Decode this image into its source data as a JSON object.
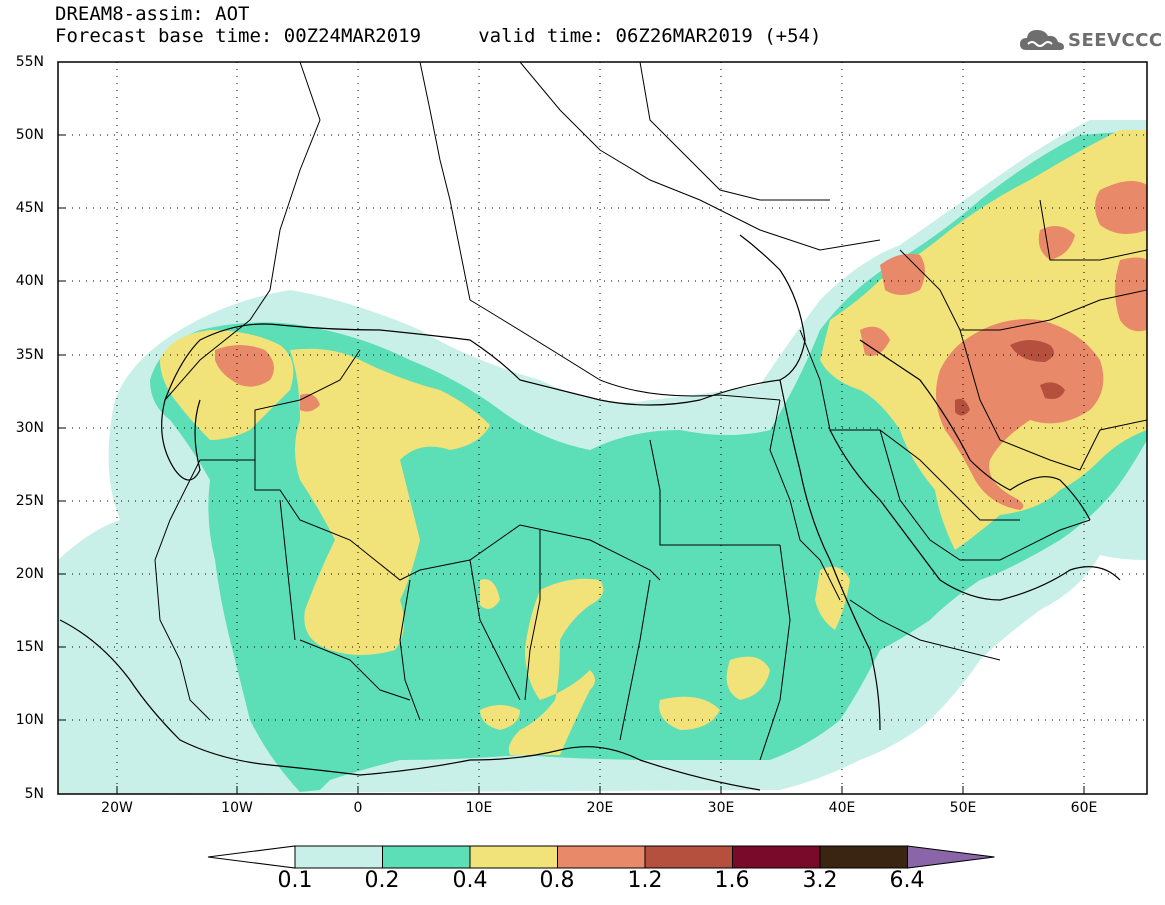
{
  "header": {
    "line1": "DREAM8-assim: AOT",
    "line2": "Forecast base time: 00Z24MAR2019     valid time: 06Z26MAR2019 (+54)"
  },
  "logo": {
    "text": "SEEVCCC",
    "icon": "cloud-icon",
    "color": "#6e6e6e"
  },
  "map": {
    "lat_labels": [
      "55N",
      "50N",
      "45N",
      "40N",
      "35N",
      "30N",
      "25N",
      "20N",
      "15N",
      "10N",
      "5N"
    ],
    "lon_labels": [
      "20W",
      "10W",
      "0",
      "10E",
      "20E",
      "30E",
      "40E",
      "50E",
      "60E"
    ],
    "lon_range": [
      -25,
      65
    ],
    "lat_range": [
      5,
      55
    ]
  },
  "colorbar": {
    "labels": [
      "0.1",
      "0.2",
      "0.4",
      "0.8",
      "1.2",
      "1.6",
      "3.2",
      "6.4"
    ],
    "colors": [
      "#ffffff",
      "#c9f0e8",
      "#5cdeb6",
      "#f2e27a",
      "#e8896a",
      "#b5503f",
      "#7a0a2a",
      "#3a2412",
      "#8a66a8"
    ]
  }
}
